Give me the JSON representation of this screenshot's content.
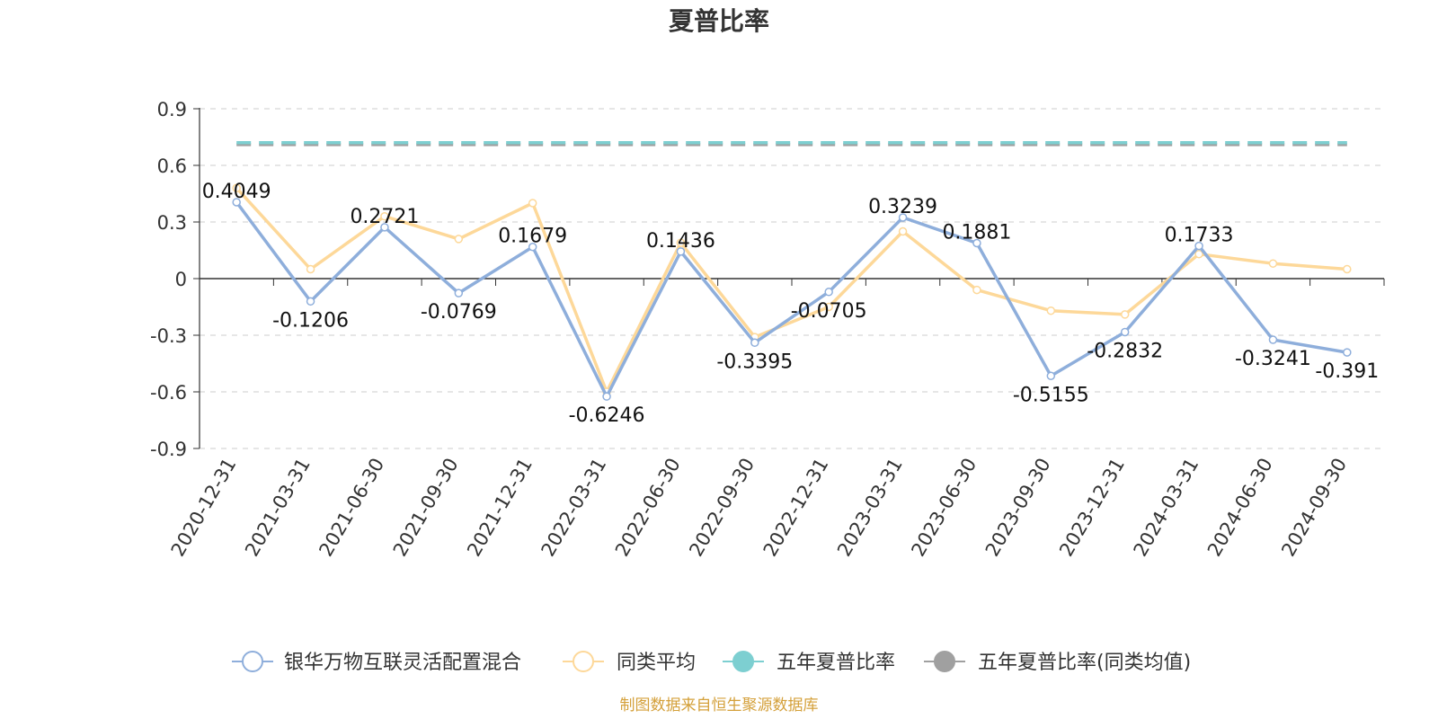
{
  "chart_data": {
    "type": "line",
    "title": "夏普比率",
    "categories": [
      "2020-12-31",
      "2021-03-31",
      "2021-06-30",
      "2021-09-30",
      "2021-12-31",
      "2022-03-31",
      "2022-06-30",
      "2022-09-30",
      "2022-12-31",
      "2023-03-31",
      "2023-06-30",
      "2023-09-30",
      "2023-12-31",
      "2024-03-31",
      "2024-06-30",
      "2024-09-30"
    ],
    "series": [
      {
        "name": "银华万物互联灵活配置混合",
        "color": "#8eaedb",
        "values": [
          0.4049,
          -0.1206,
          0.2721,
          -0.0769,
          0.1679,
          -0.6246,
          0.1436,
          -0.3395,
          -0.0705,
          0.3239,
          0.1881,
          -0.5155,
          -0.2832,
          0.1733,
          -0.3241,
          -0.391
        ],
        "labels": [
          "0.4049",
          "-0.1206",
          "0.2721",
          "-0.0769",
          "0.1679",
          "-0.6246",
          "0.1436",
          "-0.3395",
          "-0.0705",
          "0.3239",
          "0.1881",
          "-0.5155",
          "-0.2832",
          "0.1733",
          "-0.3241",
          "-0.391"
        ]
      },
      {
        "name": "同类平均",
        "color": "#fdd899",
        "values": [
          0.48,
          0.05,
          0.33,
          0.21,
          0.4,
          -0.6,
          0.19,
          -0.31,
          -0.15,
          0.25,
          -0.06,
          -0.17,
          -0.19,
          0.13,
          0.08,
          0.05
        ]
      },
      {
        "name": "五年夏普比率",
        "color": "#7dcfd1",
        "value": 0.72
      },
      {
        "name": "五年夏普比率(同类均值)",
        "color": "#a0a0a0",
        "value": 0.71
      }
    ],
    "yticks": [
      "0.9",
      "0.6",
      "0.3",
      "0",
      "-0.3",
      "-0.6",
      "-0.9"
    ],
    "ylim": [
      -0.9,
      0.9
    ],
    "grid": true,
    "legend": "bottom"
  },
  "source": "制图数据来自恒生聚源数据库"
}
